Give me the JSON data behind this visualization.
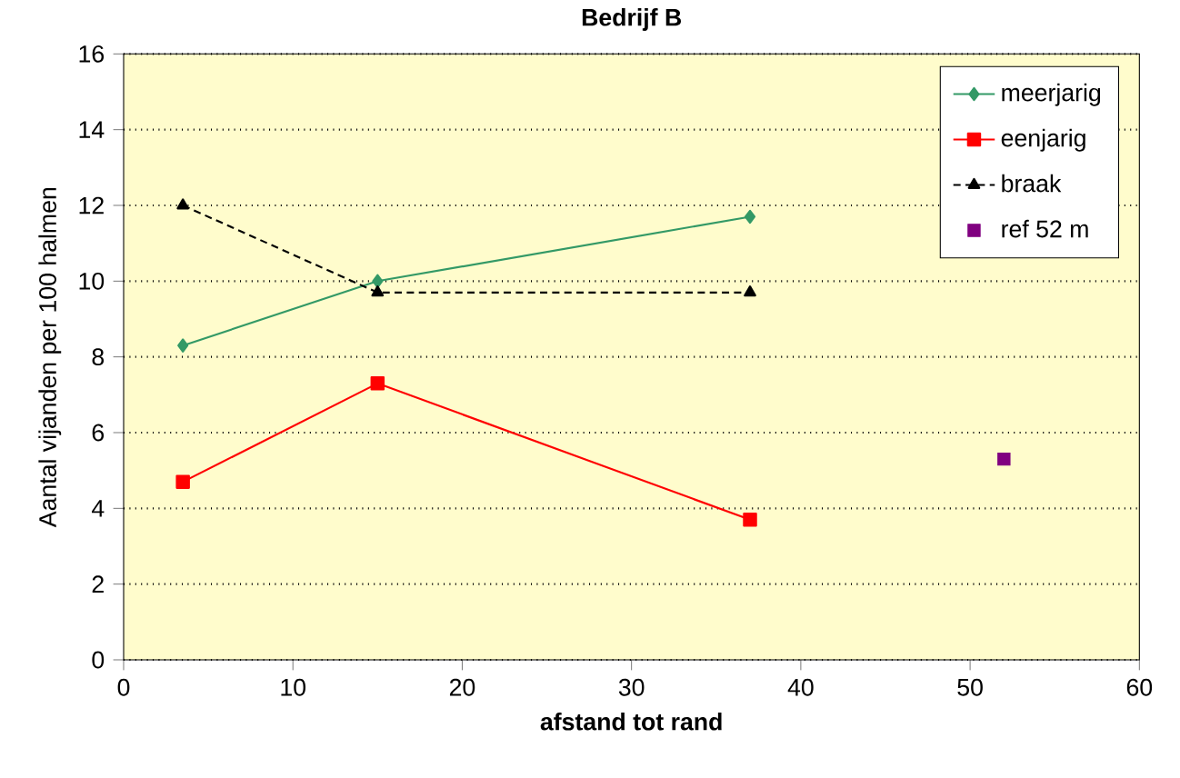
{
  "chart_data": {
    "type": "line",
    "title": "Bedrijf B",
    "xlabel": "afstand tot rand",
    "ylabel": "Aantal vijanden per 100 halmen",
    "xlim": [
      0,
      60
    ],
    "xticks": [
      0,
      10,
      20,
      30,
      40,
      50,
      60
    ],
    "ylim": [
      0,
      16
    ],
    "yticks": [
      0,
      2,
      4,
      6,
      8,
      10,
      12,
      14,
      16
    ],
    "grid": "y",
    "legend": "top right",
    "series": [
      {
        "name": "meerjarig",
        "color": "#339966",
        "x": [
          3.5,
          15,
          37
        ],
        "values": [
          8.3,
          10,
          11.7
        ],
        "marker": "diamond",
        "line_style": "solid"
      },
      {
        "name": "eenjarig",
        "color": "#ff0000",
        "x": [
          3.5,
          15,
          37
        ],
        "values": [
          4.7,
          7.3,
          3.7
        ],
        "marker": "square",
        "line_style": "solid"
      },
      {
        "name": "braak",
        "color": "#000000",
        "x": [
          3.5,
          15,
          37
        ],
        "values": [
          12,
          9.7,
          9.7
        ],
        "marker": "triangle",
        "line_style": "dashed"
      },
      {
        "name": "ref 52 m",
        "color": "#800080",
        "type": "scatter",
        "x": [
          52
        ],
        "values": [
          5.3
        ],
        "marker": "square"
      }
    ]
  }
}
